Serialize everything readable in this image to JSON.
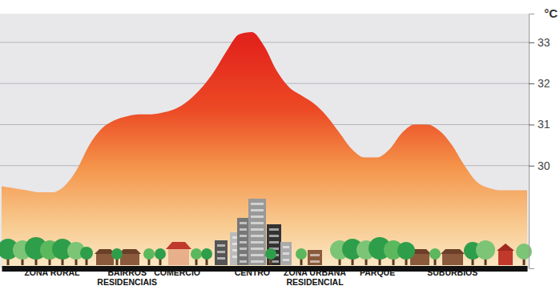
{
  "chart_data": {
    "type": "area",
    "y_label": "°C",
    "categories": [
      null,
      null,
      null,
      null,
      "ZONA RURAL",
      null,
      null,
      null,
      null,
      null,
      "BAIRROS\nRESIDENCIAIS",
      null,
      null,
      null,
      "COMÉRCIO",
      null,
      null,
      null,
      null,
      null,
      "CENTRO",
      null,
      null,
      null,
      null,
      "ZONA URBANA\nRESIDENCIAL",
      null,
      null,
      null,
      null,
      "PARQUE",
      null,
      null,
      null,
      null,
      null,
      "SUBÚRBIOS",
      null,
      null,
      null,
      null,
      null,
      null
    ],
    "values": [
      29.5,
      29.45,
      29.4,
      29.35,
      29.35,
      29.5,
      29.9,
      30.5,
      30.9,
      31.1,
      31.2,
      31.25,
      31.25,
      31.3,
      31.4,
      31.6,
      31.9,
      32.3,
      32.8,
      33.2,
      33.25,
      32.9,
      32.3,
      31.9,
      31.7,
      31.5,
      31.2,
      30.8,
      30.4,
      30.2,
      30.2,
      30.4,
      30.8,
      31.0,
      31.0,
      30.85,
      30.5,
      30.0,
      29.6,
      29.45,
      29.4,
      29.4,
      29.4
    ],
    "color": "#e3241c",
    "ylim": [
      27.5,
      33.7
    ],
    "yticks": [
      30,
      31,
      32,
      33
    ],
    "grid": true
  }
}
